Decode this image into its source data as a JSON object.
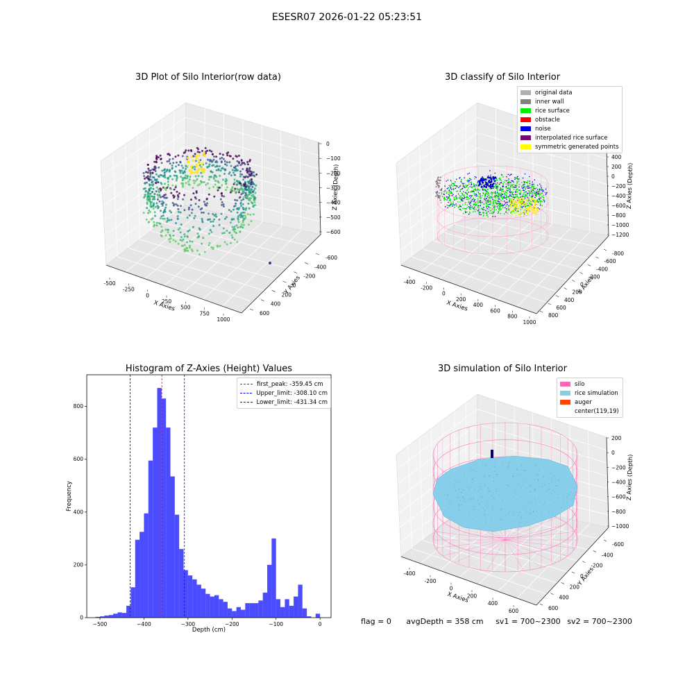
{
  "figure": {
    "suptitle": "ESESR07 2026-01-22 05:23:51"
  },
  "panels": {
    "p1": {
      "title": "3D Plot of Silo Interior(row data)",
      "xlabel": "X Axies",
      "ylabel": "Y Axies",
      "zlabel": "Z Axies (Depth)",
      "xticks": [
        "-500",
        "-250",
        "0",
        "250",
        "500",
        "750",
        "1000"
      ],
      "yticks": [
        "-600",
        "-400",
        "-200",
        "0",
        "200",
        "400",
        "600"
      ],
      "zticks": [
        "0",
        "−100",
        "−200",
        "−300",
        "−400",
        "−500",
        "−600"
      ]
    },
    "p2": {
      "title": "3D classify of Silo Interior",
      "xlabel": "X Axies",
      "ylabel": "Y Axies",
      "zlabel": "Z Axies (Depth)",
      "xticks": [
        "-400",
        "-200",
        "0",
        "200",
        "400",
        "600",
        "800",
        "1000"
      ],
      "yticks": [
        "-800",
        "-600",
        "-400",
        "-200",
        "0",
        "200",
        "400",
        "600",
        "800"
      ],
      "zticks": [
        "400",
        "200",
        "0",
        "−200",
        "−400",
        "−600",
        "−800",
        "−1000",
        "−1200"
      ],
      "legend": [
        {
          "label": "original data",
          "color": "#b0b0b0"
        },
        {
          "label": "inner wall",
          "color": "#808080"
        },
        {
          "label": "rice surface",
          "color": "#00ee00"
        },
        {
          "label": "obstacle",
          "color": "#ff0000"
        },
        {
          "label": "noise",
          "color": "#0000dd"
        },
        {
          "label": "interpolated rice surface",
          "color": "#800080"
        },
        {
          "label": "symmetric generated points",
          "color": "#ffff00"
        }
      ]
    },
    "p4": {
      "title": "3D simulation of Silo Interior",
      "xlabel": "X Axies",
      "ylabel": "Y Axies",
      "zlabel": "Z Axies (Depth)",
      "xticks": [
        "-400",
        "-200",
        "0",
        "200",
        "400",
        "600"
      ],
      "yticks": [
        "-600",
        "-400",
        "-200",
        "0",
        "200",
        "400",
        "600"
      ],
      "zticks": [
        "200",
        "0",
        "−200",
        "−400",
        "−600",
        "−800",
        "−1000"
      ],
      "legend": [
        {
          "label": "silo",
          "color": "#ff69b4"
        },
        {
          "label": "rice simulation",
          "color": "#87ceeb"
        },
        {
          "label": "auger",
          "color": "#ff4500"
        },
        {
          "label": "center(119,19)",
          "color": ""
        }
      ]
    }
  },
  "status": {
    "flag": "flag = 0",
    "avg_depth": "avgDepth = 358 cm",
    "sv1": "sv1 = 700~2300",
    "sv2": "sv2 = 700~2300"
  },
  "chart_data": {
    "type": "bar",
    "title": "Histogram of Z-Axies (Height) Values",
    "xlabel": "Depth (cm)",
    "ylabel": "Frequency",
    "xlim": [
      -530,
      25
    ],
    "ylim": [
      0,
      920
    ],
    "xticks": [
      -500,
      -400,
      -300,
      -200,
      -100,
      0
    ],
    "yticks": [
      0,
      200,
      400,
      600,
      800
    ],
    "bar_color": "#0000ff",
    "bin_width": 10,
    "bin_left_edges": [
      -510,
      -500,
      -490,
      -480,
      -470,
      -460,
      -450,
      -440,
      -430,
      -420,
      -410,
      -400,
      -390,
      -380,
      -370,
      -360,
      -350,
      -340,
      -330,
      -320,
      -310,
      -300,
      -290,
      -280,
      -270,
      -260,
      -250,
      -240,
      -230,
      -220,
      -210,
      -200,
      -190,
      -180,
      -170,
      -160,
      -150,
      -140,
      -130,
      -120,
      -110,
      -100,
      -90,
      -80,
      -70,
      -60,
      -50,
      -40,
      -30,
      -20,
      -10,
      0
    ],
    "values": [
      3,
      5,
      8,
      10,
      15,
      20,
      18,
      45,
      115,
      295,
      325,
      395,
      595,
      720,
      870,
      830,
      720,
      535,
      390,
      260,
      180,
      160,
      145,
      125,
      110,
      90,
      80,
      85,
      70,
      60,
      35,
      25,
      40,
      30,
      55,
      55,
      55,
      65,
      95,
      200,
      300,
      70,
      40,
      70,
      45,
      80,
      125,
      35,
      5,
      0,
      15,
      0
    ],
    "vlines": [
      {
        "label": "first_peak: -359.45 cm",
        "x": -359.45,
        "color": "#ff0000"
      },
      {
        "label": "Upper_limit: -308.10 cm",
        "x": -308.1,
        "color": "#0000ff"
      },
      {
        "label": "Lower_limit: -431.34 cm",
        "x": -431.34,
        "color": "#0000ff"
      }
    ]
  }
}
